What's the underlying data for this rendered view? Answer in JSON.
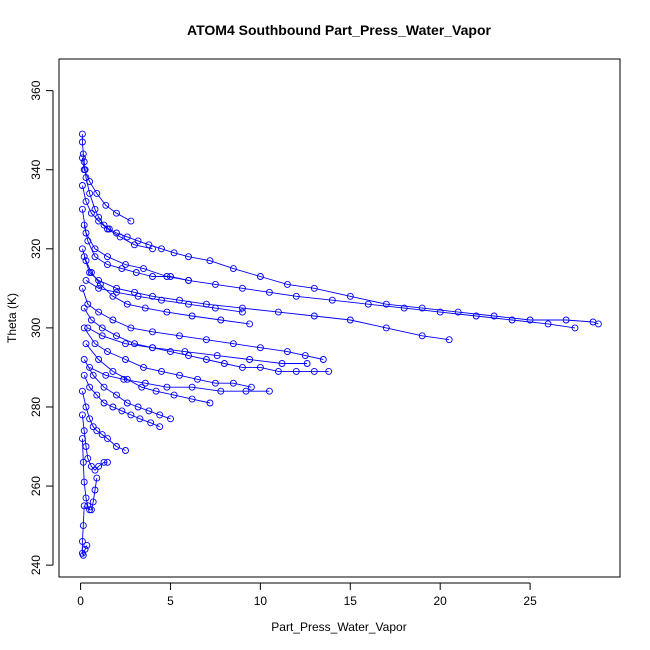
{
  "chart_data": {
    "type": "scatter",
    "title": "ATOM4 Southbound Part_Press_Water_Vapor",
    "xlabel": "Part_Press_Water_Vapor",
    "ylabel": "Theta (K)",
    "xlim": [
      -1.2,
      30
    ],
    "ylim": [
      237,
      368
    ],
    "x_ticks": [
      0,
      5,
      10,
      15,
      20,
      25
    ],
    "y_ticks": [
      240,
      260,
      280,
      300,
      320,
      340,
      360
    ],
    "x_tick_labels": [
      "0",
      "5",
      "10",
      "15",
      "20",
      "25"
    ],
    "y_tick_labels": [
      "240",
      "260",
      "280",
      "300",
      "320",
      "340",
      "360"
    ],
    "grid": false,
    "legend": "none",
    "colors": {
      "series": "#0000ff",
      "axis": "#000000"
    },
    "marker": "open-circle",
    "connect_points": true,
    "series": [
      {
        "x": [
          0.1,
          0.1,
          0.15,
          0.2,
          0.25,
          0.3,
          0.5,
          0.8,
          1.0,
          1.3,
          1.6,
          2.0,
          2.6,
          3.2,
          3.8,
          4.5,
          5.2,
          6.0,
          7.2,
          8.5,
          10.0,
          11.5,
          13.0,
          15.0,
          17.0,
          19.0,
          21.0,
          23.0,
          25.0,
          27.0,
          28.5,
          28.8
        ],
        "y": [
          349,
          347,
          344,
          342,
          340,
          338,
          334,
          330,
          328,
          326,
          325,
          324,
          323,
          322,
          321,
          320,
          319,
          318,
          317,
          315,
          313,
          311,
          310,
          308,
          306,
          305,
          304,
          303,
          302,
          302,
          301.5,
          301
        ]
      },
      {
        "x": [
          0.1,
          0.3,
          0.8,
          1.5,
          2.5,
          3.5,
          4.8,
          6.0,
          7.5,
          9.0,
          10.5,
          12.0,
          14.0,
          16.0,
          18.0,
          20.0,
          22.0,
          24.0,
          26.0,
          27.5
        ],
        "y": [
          330,
          324,
          320,
          318,
          316,
          315,
          313,
          312,
          311,
          310,
          309,
          308,
          307,
          306,
          305,
          304,
          303,
          302,
          301,
          300
        ]
      },
      {
        "x": [
          0.2,
          0.5,
          1.0,
          2.0,
          3.0,
          4.0,
          5.5,
          7.0,
          9.0,
          11.0,
          13.0,
          15.0,
          17.0,
          19.0,
          20.5
        ],
        "y": [
          318,
          314,
          312,
          310,
          309,
          308,
          307,
          306,
          305,
          304,
          303,
          302,
          300,
          298,
          297
        ]
      },
      {
        "x": [
          0.1,
          0.4,
          1.0,
          1.8,
          2.8,
          4.0,
          5.5,
          7.0,
          8.5,
          10.0,
          11.5,
          12.5,
          13.5
        ],
        "y": [
          310,
          306,
          304,
          302,
          300,
          299,
          298,
          297,
          296,
          295,
          294,
          293,
          292
        ]
      },
      {
        "x": [
          0.2,
          0.6,
          1.2,
          2.0,
          3.0,
          4.0,
          5.0,
          6.0,
          7.0,
          8.0,
          9.0,
          10.0,
          11.0,
          12.0,
          13.0,
          13.8
        ],
        "y": [
          305,
          302,
          300,
          298,
          296,
          295,
          294,
          293,
          292,
          291,
          290,
          290,
          289,
          289,
          289,
          289
        ]
      },
      {
        "x": [
          0.2,
          0.8,
          1.5,
          2.5,
          3.5,
          4.5,
          5.5,
          6.5,
          7.5,
          8.5,
          9.5
        ],
        "y": [
          300,
          296,
          294,
          292,
          290,
          289,
          288,
          287,
          286,
          286,
          285
        ]
      },
      {
        "x": [
          0.3,
          1.0,
          1.8,
          2.6,
          3.4,
          4.2,
          5.2,
          6.2,
          7.2
        ],
        "y": [
          296,
          292,
          289,
          287,
          285,
          284,
          283,
          282,
          281
        ]
      },
      {
        "x": [
          0.2,
          0.7,
          1.3,
          2.0,
          2.6,
          3.2,
          3.8,
          4.4,
          5.0
        ],
        "y": [
          292,
          288,
          285,
          283,
          281,
          280,
          279,
          278,
          277
        ]
      },
      {
        "x": [
          0.2,
          0.5,
          0.9,
          1.3,
          1.8,
          2.3,
          2.8,
          3.3,
          3.9,
          4.4
        ],
        "y": [
          288,
          285,
          283,
          281,
          280,
          279,
          278,
          277,
          276,
          275
        ]
      },
      {
        "x": [
          0.1,
          0.3,
          0.5,
          0.7,
          0.9,
          1.2,
          1.5,
          2.0,
          2.5
        ],
        "y": [
          284,
          280,
          277,
          275,
          274,
          273,
          272,
          270,
          269
        ]
      },
      {
        "x": [
          0.1,
          0.2,
          0.3,
          0.4,
          0.6,
          0.8,
          1.0,
          1.3,
          1.5
        ],
        "y": [
          278,
          274,
          270,
          267,
          265,
          264,
          265,
          266,
          266
        ]
      },
      {
        "x": [
          0.1,
          0.15,
          0.2,
          0.3,
          0.4,
          0.5,
          0.6,
          0.7,
          0.8,
          0.9
        ],
        "y": [
          272,
          266,
          261,
          257,
          255,
          254,
          254,
          256,
          259,
          262
        ]
      },
      {
        "x": [
          0.2,
          0.15,
          0.1,
          0.1,
          0.15,
          0.25,
          0.35
        ],
        "y": [
          255,
          250,
          246,
          243,
          242.5,
          244,
          245
        ]
      },
      {
        "x": [
          0.1,
          0.3,
          0.6,
          1.0,
          1.5,
          2.2,
          3.0,
          4.0
        ],
        "y": [
          336,
          332,
          329,
          327,
          325,
          323,
          321,
          320
        ]
      },
      {
        "x": [
          0.1,
          0.2,
          0.5,
          0.9,
          1.4,
          2.0,
          2.8
        ],
        "y": [
          343,
          340,
          337,
          334,
          331,
          329,
          327
        ]
      },
      {
        "x": [
          0.3,
          1.0,
          2.0,
          3.2,
          4.5,
          6.0,
          7.5,
          9.0
        ],
        "y": [
          312,
          310,
          309,
          308,
          307,
          306,
          305,
          304
        ]
      },
      {
        "x": [
          0.2,
          0.4,
          0.8,
          1.5,
          2.3,
          3.1,
          4.0,
          5.0,
          6.0
        ],
        "y": [
          326,
          322,
          318,
          316,
          315,
          314,
          313,
          313,
          312
        ]
      },
      {
        "x": [
          0.4,
          1.2,
          2.5,
          4.0,
          5.8,
          7.6,
          9.4,
          11.2,
          12.6
        ],
        "y": [
          300,
          298,
          296,
          295,
          294,
          293,
          292,
          291,
          291
        ]
      },
      {
        "x": [
          0.5,
          1.4,
          2.4,
          3.6,
          4.8,
          6.2,
          7.8,
          9.2,
          10.5
        ],
        "y": [
          290,
          288,
          287,
          286,
          285,
          285,
          284,
          284,
          284
        ]
      },
      {
        "x": [
          0.1,
          0.3,
          0.6,
          1.1,
          1.8,
          2.6,
          3.6,
          4.8,
          6.2,
          7.8,
          9.4
        ],
        "y": [
          320,
          317,
          314,
          311,
          308,
          306,
          305,
          304,
          303,
          302,
          301
        ]
      }
    ]
  }
}
